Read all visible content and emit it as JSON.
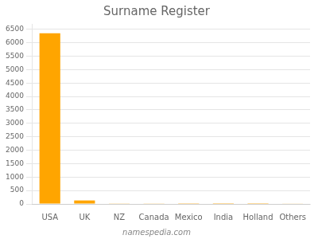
{
  "chart_data": {
    "type": "bar",
    "title": "Surname Register",
    "categories": [
      "USA",
      "UK",
      "NZ",
      "Canada",
      "Mexico",
      "India",
      "Holland",
      "Others"
    ],
    "values": [
      6350,
      130,
      20,
      10,
      5,
      3,
      3,
      18
    ],
    "color": "#FFA500",
    "ylim": [
      0,
      6700
    ],
    "yticks": [
      0,
      500,
      1000,
      1500,
      2000,
      2500,
      3000,
      3500,
      4000,
      4500,
      5000,
      5500,
      6000,
      6500
    ],
    "grid": true,
    "annotations": [
      "namespedia.com"
    ]
  }
}
